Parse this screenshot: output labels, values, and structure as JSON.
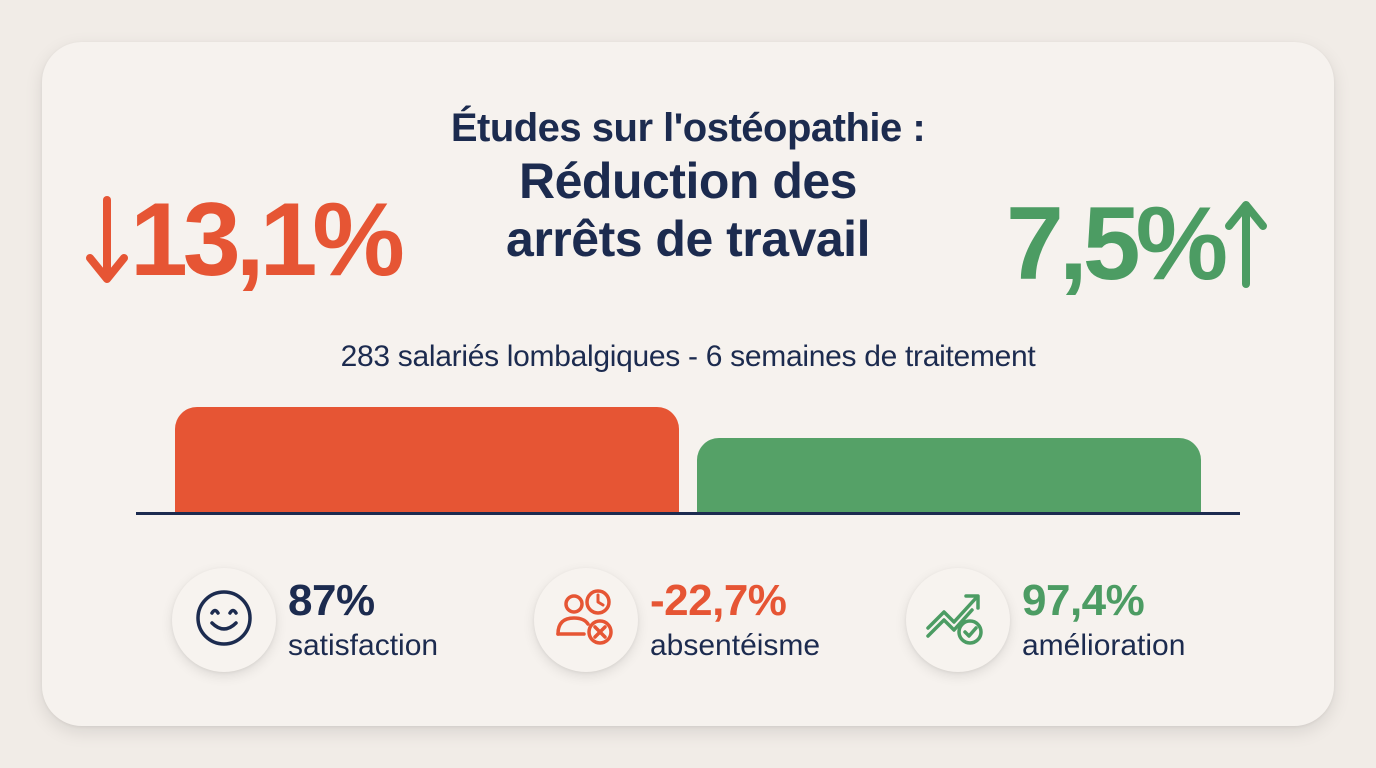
{
  "header": {
    "title_line1": "Études sur l'ostéopathie :",
    "title_line2": "Réduction des",
    "title_line3": "arrêts de travail"
  },
  "highlights": {
    "left": {
      "value": "13,1%",
      "direction": "down",
      "icon": "arrow-down-icon",
      "color": "#e65534"
    },
    "right": {
      "value": "7,5%",
      "direction": "up",
      "icon": "arrow-up-icon",
      "color": "#4c9c63"
    }
  },
  "subtitle": "283 salariés lombalgiques - 6 semaines de traitement",
  "chart_data": {
    "type": "bar",
    "categories": [
      "",
      ""
    ],
    "values": [
      13.1,
      7.5
    ],
    "colors": [
      "#e65534",
      "#55a167"
    ],
    "title": "",
    "xlabel": "",
    "ylabel": "",
    "grid": false,
    "legend": "none"
  },
  "kpis": [
    {
      "value": "87%",
      "label": "satisfaction",
      "icon": "smiley-face-icon",
      "value_color": "#1c2b4f"
    },
    {
      "value": "-22,7%",
      "label": "absentéisme",
      "icon": "absent-user-clock-icon",
      "value_color": "#e65534"
    },
    {
      "value": "97,4%",
      "label": "amélioration",
      "icon": "trend-up-check-icon",
      "value_color": "#4c9c63"
    }
  ],
  "colors": {
    "navy": "#1c2b4f",
    "orange": "#e65534",
    "green": "#4c9c63",
    "background": "#f1ece7"
  }
}
